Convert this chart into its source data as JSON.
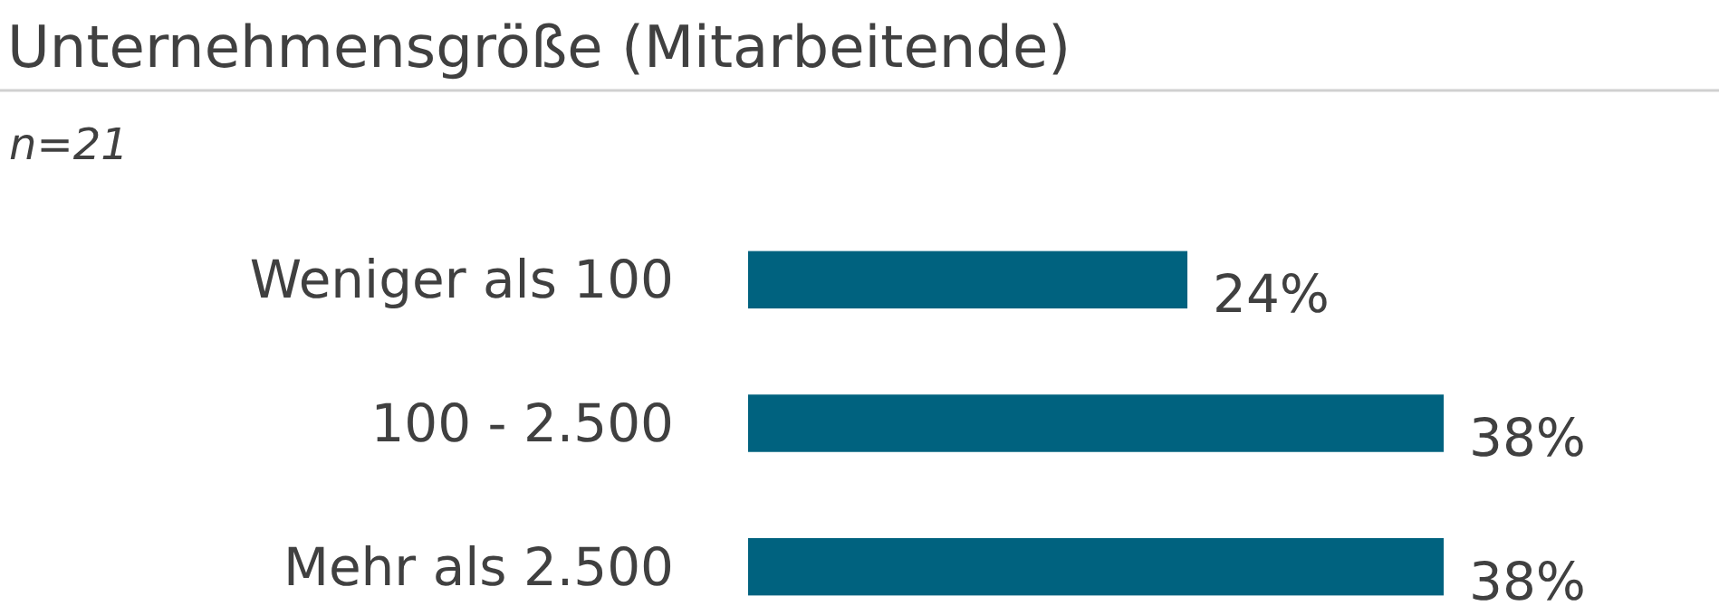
{
  "chart_data": {
    "type": "bar",
    "orientation": "horizontal",
    "title": "Unternehmensgröße (Mitarbeitende)",
    "subtitle": "n=21",
    "categories": [
      "Weniger als 100",
      "100 - 2.500",
      "Mehr als 2.500"
    ],
    "values": [
      24,
      38,
      38
    ],
    "value_labels": [
      "24%",
      "38%",
      "38%"
    ],
    "color": "#00627f"
  }
}
